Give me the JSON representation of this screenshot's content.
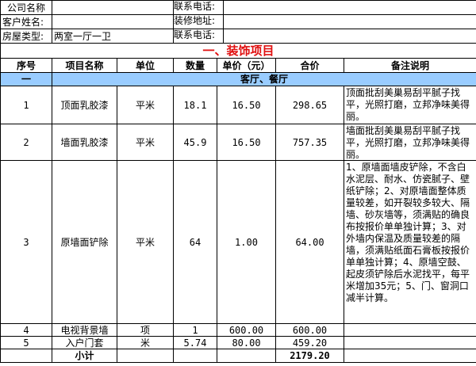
{
  "info": {
    "company_label": "公司名称",
    "company_value": "",
    "phone_label_1": "联系电话:",
    "phone_value_1": "",
    "customer_label": "客户姓名:",
    "customer_value": "",
    "address_label": "装修地址:",
    "address_value": "",
    "house_type_label": "房屋类型:",
    "house_type_value": "两室一厅一卫",
    "phone_label_2": "联系电话:",
    "phone_value_2": ""
  },
  "section_title": "一、装饰项目",
  "headers": [
    "序号",
    "项目名称",
    "单位",
    "数量",
    "单价（元）",
    "合价",
    "备注说明"
  ],
  "group": {
    "index": "一",
    "name": "客厅、餐厅"
  },
  "rows": [
    {
      "no": "1",
      "name": "顶面乳胶漆",
      "unit": "平米",
      "qty": "18.1",
      "price": "16.50",
      "total": "298.65",
      "note": "顶面批刮美巢易刮平腻子找平，光照打磨，立邦净味美得丽。"
    },
    {
      "no": "2",
      "name": "墙面乳胶漆",
      "unit": "平米",
      "qty": "45.9",
      "price": "16.50",
      "total": "757.35",
      "note": "墙面批刮美巢易刮平腻子找平，光照打磨，立邦净味美得丽。"
    },
    {
      "no": "3",
      "name": "原墙面铲除",
      "unit": "平米",
      "qty": "64",
      "price": "1.00",
      "total": "64.00",
      "note": "1、原墙面墙皮铲除，不含白水泥层、耐水、仿瓷腻子、壁纸铲除；2、对原墙面整体质量较差，如开裂较多较大、隔墙、砂灰墙等，须满贴的确良布按报价单单独计算；3、对外墙内保温及质量较差的隔墙，须满贴纸面石膏板按报价单单独计算；4、原墙空鼓、起皮须铲除后水泥找平，每平米增加35元；5、门、窗洞口减半计算。"
    },
    {
      "no": "4",
      "name": "电视背景墙",
      "unit": "项",
      "qty": "1",
      "price": "600.00",
      "total": "600.00",
      "note": ""
    },
    {
      "no": "5",
      "name": "入户门套",
      "unit": "米",
      "qty": "5.74",
      "price": "80.00",
      "total": "459.20",
      "note": ""
    }
  ],
  "subtotal": {
    "label": "小计",
    "value": "2179.20"
  }
}
